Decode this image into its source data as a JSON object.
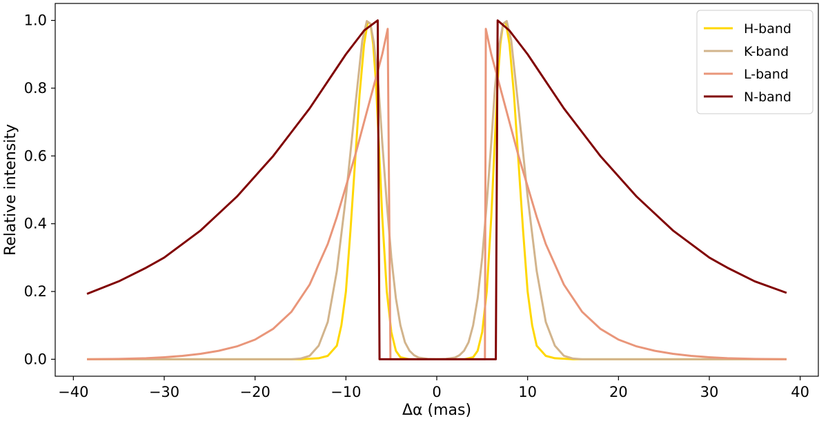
{
  "chart_data": {
    "type": "line",
    "title": "",
    "xlabel": "Δα (mas)",
    "ylabel": "Relative intensity",
    "xlim": [
      -42,
      42
    ],
    "ylim": [
      -0.05,
      1.05
    ],
    "x_ticks": [
      -40,
      -30,
      -20,
      -10,
      0,
      10,
      20,
      30,
      40
    ],
    "x_tick_labels": [
      "−40",
      "−30",
      "−20",
      "−10",
      "0",
      "10",
      "20",
      "30",
      "40"
    ],
    "y_ticks": [
      0.0,
      0.2,
      0.4,
      0.6,
      0.8,
      1.0
    ],
    "y_tick_labels": [
      "0.0",
      "0.2",
      "0.4",
      "0.6",
      "0.8",
      "1.0"
    ],
    "grid": false,
    "legend_position": "top-right",
    "series": [
      {
        "name": "H-band",
        "color": "#FFD700",
        "points": [
          [
            -38.5,
            0.0
          ],
          [
            -15,
            0.0
          ],
          [
            -13,
            0.003
          ],
          [
            -12,
            0.01
          ],
          [
            -11,
            0.04
          ],
          [
            -10.5,
            0.1
          ],
          [
            -10,
            0.2
          ],
          [
            -9.5,
            0.38
          ],
          [
            -9,
            0.58
          ],
          [
            -8.5,
            0.78
          ],
          [
            -8,
            0.93
          ],
          [
            -7.6,
            0.995
          ],
          [
            -7.3,
            0.99
          ],
          [
            -7,
            0.93
          ],
          [
            -6.7,
            0.82
          ],
          [
            -6.4,
            0.65
          ],
          [
            -6,
            0.42
          ],
          [
            -5.5,
            0.2
          ],
          [
            -5,
            0.08
          ],
          [
            -4.5,
            0.025
          ],
          [
            -4,
            0.006
          ],
          [
            -3,
            0.0
          ],
          [
            3,
            0.0
          ],
          [
            4,
            0.006
          ],
          [
            4.5,
            0.025
          ],
          [
            5,
            0.08
          ],
          [
            5.5,
            0.2
          ],
          [
            6,
            0.42
          ],
          [
            6.4,
            0.65
          ],
          [
            6.7,
            0.82
          ],
          [
            7,
            0.93
          ],
          [
            7.3,
            0.99
          ],
          [
            7.6,
            0.995
          ],
          [
            8,
            0.93
          ],
          [
            8.5,
            0.78
          ],
          [
            9,
            0.58
          ],
          [
            9.5,
            0.38
          ],
          [
            10,
            0.2
          ],
          [
            10.5,
            0.1
          ],
          [
            11,
            0.04
          ],
          [
            12,
            0.01
          ],
          [
            13,
            0.003
          ],
          [
            15,
            0.0
          ],
          [
            38.5,
            0.0
          ]
        ]
      },
      {
        "name": "K-band",
        "color": "#D2B48C",
        "points": [
          [
            -38.5,
            0.0
          ],
          [
            -16,
            0.0
          ],
          [
            -15,
            0.002
          ],
          [
            -14,
            0.01
          ],
          [
            -13,
            0.04
          ],
          [
            -12,
            0.11
          ],
          [
            -11,
            0.26
          ],
          [
            -10,
            0.48
          ],
          [
            -9,
            0.74
          ],
          [
            -8.2,
            0.94
          ],
          [
            -7.7,
            0.998
          ],
          [
            -7.3,
            0.99
          ],
          [
            -6.9,
            0.93
          ],
          [
            -6.4,
            0.8
          ],
          [
            -6,
            0.64
          ],
          [
            -5.5,
            0.46
          ],
          [
            -5,
            0.3
          ],
          [
            -4.5,
            0.18
          ],
          [
            -4,
            0.1
          ],
          [
            -3.5,
            0.05
          ],
          [
            -3,
            0.025
          ],
          [
            -2.5,
            0.012
          ],
          [
            -2,
            0.005
          ],
          [
            -1,
            0.001
          ],
          [
            0,
            0.0
          ],
          [
            1,
            0.001
          ],
          [
            2,
            0.005
          ],
          [
            2.5,
            0.012
          ],
          [
            3,
            0.025
          ],
          [
            3.5,
            0.05
          ],
          [
            4,
            0.1
          ],
          [
            4.5,
            0.18
          ],
          [
            5,
            0.3
          ],
          [
            5.5,
            0.46
          ],
          [
            6,
            0.64
          ],
          [
            6.4,
            0.8
          ],
          [
            6.9,
            0.93
          ],
          [
            7.3,
            0.99
          ],
          [
            7.7,
            0.998
          ],
          [
            8.2,
            0.94
          ],
          [
            9,
            0.74
          ],
          [
            10,
            0.48
          ],
          [
            11,
            0.26
          ],
          [
            12,
            0.11
          ],
          [
            13,
            0.04
          ],
          [
            14,
            0.01
          ],
          [
            15,
            0.002
          ],
          [
            16,
            0.0
          ],
          [
            38.5,
            0.0
          ]
        ]
      },
      {
        "name": "L-band",
        "color": "#E9967A",
        "points": [
          [
            -38.5,
            0.0
          ],
          [
            -35,
            0.001
          ],
          [
            -32,
            0.003
          ],
          [
            -30,
            0.006
          ],
          [
            -28,
            0.01
          ],
          [
            -26,
            0.016
          ],
          [
            -24,
            0.025
          ],
          [
            -22,
            0.038
          ],
          [
            -20,
            0.058
          ],
          [
            -18,
            0.09
          ],
          [
            -16,
            0.14
          ],
          [
            -14,
            0.22
          ],
          [
            -12,
            0.34
          ],
          [
            -11,
            0.42
          ],
          [
            -10,
            0.51
          ],
          [
            -9,
            0.6
          ],
          [
            -8,
            0.7
          ],
          [
            -7,
            0.8
          ],
          [
            -6,
            0.9
          ],
          [
            -5.4,
            0.975
          ],
          [
            -5.1,
            0.0
          ],
          [
            5.3,
            0.0
          ],
          [
            5.4,
            0.975
          ],
          [
            6,
            0.9
          ],
          [
            7,
            0.8
          ],
          [
            8,
            0.7
          ],
          [
            9,
            0.6
          ],
          [
            10,
            0.51
          ],
          [
            11,
            0.42
          ],
          [
            12,
            0.34
          ],
          [
            14,
            0.22
          ],
          [
            16,
            0.14
          ],
          [
            18,
            0.09
          ],
          [
            20,
            0.058
          ],
          [
            22,
            0.038
          ],
          [
            24,
            0.025
          ],
          [
            26,
            0.016
          ],
          [
            28,
            0.01
          ],
          [
            30,
            0.006
          ],
          [
            32,
            0.003
          ],
          [
            35,
            0.001
          ],
          [
            38.5,
            0.0
          ]
        ]
      },
      {
        "name": "N-band",
        "color": "#800000",
        "points": [
          [
            -38.5,
            0.193
          ],
          [
            -35,
            0.23
          ],
          [
            -32,
            0.27
          ],
          [
            -30,
            0.3
          ],
          [
            -28,
            0.34
          ],
          [
            -26,
            0.38
          ],
          [
            -24,
            0.43
          ],
          [
            -22,
            0.48
          ],
          [
            -20,
            0.54
          ],
          [
            -18,
            0.6
          ],
          [
            -16,
            0.67
          ],
          [
            -14,
            0.74
          ],
          [
            -12,
            0.82
          ],
          [
            -10,
            0.9
          ],
          [
            -8,
            0.97
          ],
          [
            -6.5,
            1.0
          ],
          [
            -6.3,
            0.0
          ],
          [
            6.5,
            0.0
          ],
          [
            6.7,
            1.0
          ],
          [
            8,
            0.97
          ],
          [
            10,
            0.9
          ],
          [
            12,
            0.82
          ],
          [
            14,
            0.74
          ],
          [
            16,
            0.67
          ],
          [
            18,
            0.6
          ],
          [
            20,
            0.54
          ],
          [
            22,
            0.48
          ],
          [
            24,
            0.43
          ],
          [
            26,
            0.38
          ],
          [
            28,
            0.34
          ],
          [
            30,
            0.3
          ],
          [
            32,
            0.27
          ],
          [
            35,
            0.23
          ],
          [
            38.5,
            0.196
          ]
        ]
      }
    ]
  }
}
